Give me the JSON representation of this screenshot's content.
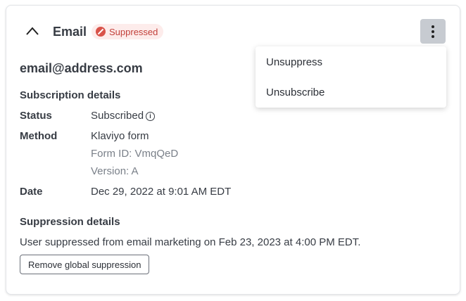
{
  "header": {
    "title": "Email",
    "badge": "Suppressed",
    "badge_color": "#c2403a"
  },
  "menu": {
    "items": [
      "Unsuppress",
      "Unsubscribe"
    ]
  },
  "email": "email@address.com",
  "subscription": {
    "heading": "Subscription details",
    "status_label": "Status",
    "status_value": "Subscribed",
    "method_label": "Method",
    "method_value": "Klaviyo form",
    "form_id": "Form ID: VmqQeD",
    "version": "Version: A",
    "date_label": "Date",
    "date_value": "Dec 29, 2022 at 9:01 AM EDT"
  },
  "suppression": {
    "heading": "Suppression details",
    "text": "User suppressed from email marketing on Feb 23, 2023 at 4:00 PM EDT.",
    "button": "Remove global suppression"
  }
}
